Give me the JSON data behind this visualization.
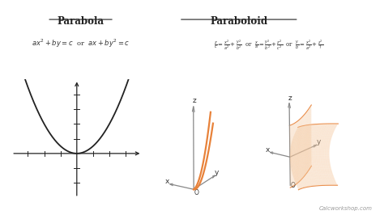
{
  "bg_color": "#ffffff",
  "text_color": "#333333",
  "orange_color": "#E8823A",
  "orange_fill": "#F5C9A0",
  "gray_axis": "#888888",
  "parabola_title": "Parabola",
  "paraboloid_title": "Paraboloid",
  "watermark": "Calcworkshop.com",
  "fig_width": 4.74,
  "fig_height": 2.66,
  "dpi": 100
}
